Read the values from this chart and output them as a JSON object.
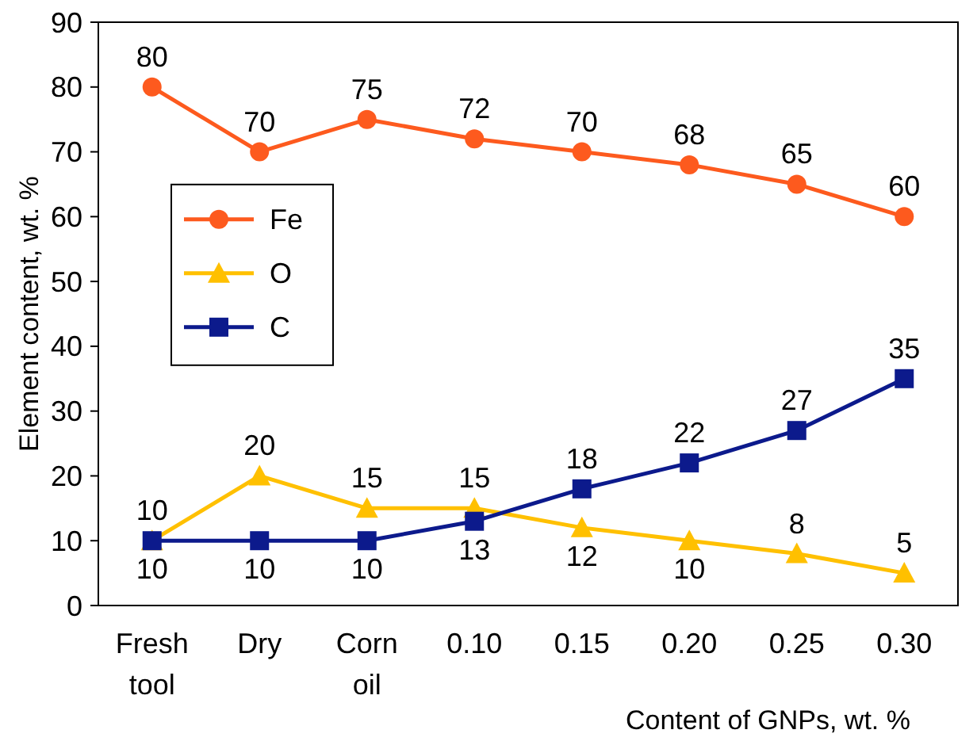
{
  "chart_data": {
    "type": "line",
    "xlabel": "Content of GNPs, wt. %",
    "ylabel": "Element content, wt. %",
    "categories": [
      "Fresh tool",
      "Dry",
      "Corn oil",
      "0.10",
      "0.15",
      "0.20",
      "0.25",
      "0.30"
    ],
    "series": [
      {
        "name": "Fe",
        "color": "#fd5a1e",
        "marker": "circle",
        "values": [
          80,
          70,
          75,
          72,
          70,
          68,
          65,
          60
        ]
      },
      {
        "name": "O",
        "color": "#ffc000",
        "marker": "triangle",
        "values": [
          10,
          20,
          15,
          15,
          12,
          10,
          8,
          5
        ]
      },
      {
        "name": "C",
        "color": "#0c1a8c",
        "marker": "square",
        "values": [
          10,
          10,
          10,
          13,
          18,
          22,
          27,
          35
        ]
      }
    ],
    "ylim": [
      0,
      90
    ],
    "yticks": [
      0,
      10,
      20,
      30,
      40,
      50,
      60,
      70,
      80,
      90
    ],
    "data_labels": true,
    "legend": "left",
    "grid": false
  }
}
